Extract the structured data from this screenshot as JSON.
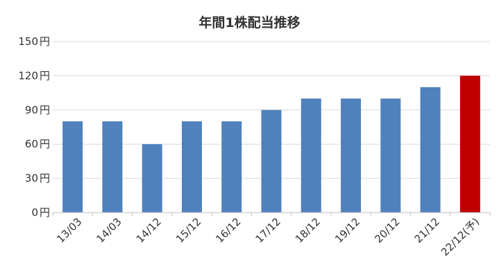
{
  "chart_data": {
    "type": "bar",
    "title": "年間1株配当推移",
    "xlabel": "",
    "ylabel": "",
    "y_unit": "円",
    "ylim": [
      0,
      150
    ],
    "yticks": [
      0,
      30,
      60,
      90,
      120,
      150
    ],
    "grid": true,
    "categories": [
      "13/03",
      "14/03",
      "14/12",
      "15/12",
      "16/12",
      "17/12",
      "18/12",
      "19/12",
      "20/12",
      "21/12",
      "22/12(予)"
    ],
    "values": [
      80,
      80,
      60,
      80,
      80,
      90,
      100,
      100,
      100,
      110,
      120
    ],
    "colors": {
      "default": "#4F81BD",
      "highlight": "#C00000",
      "grid": "#D9D9D9",
      "axis": "#BFBFBF"
    },
    "highlight_index": 10
  }
}
